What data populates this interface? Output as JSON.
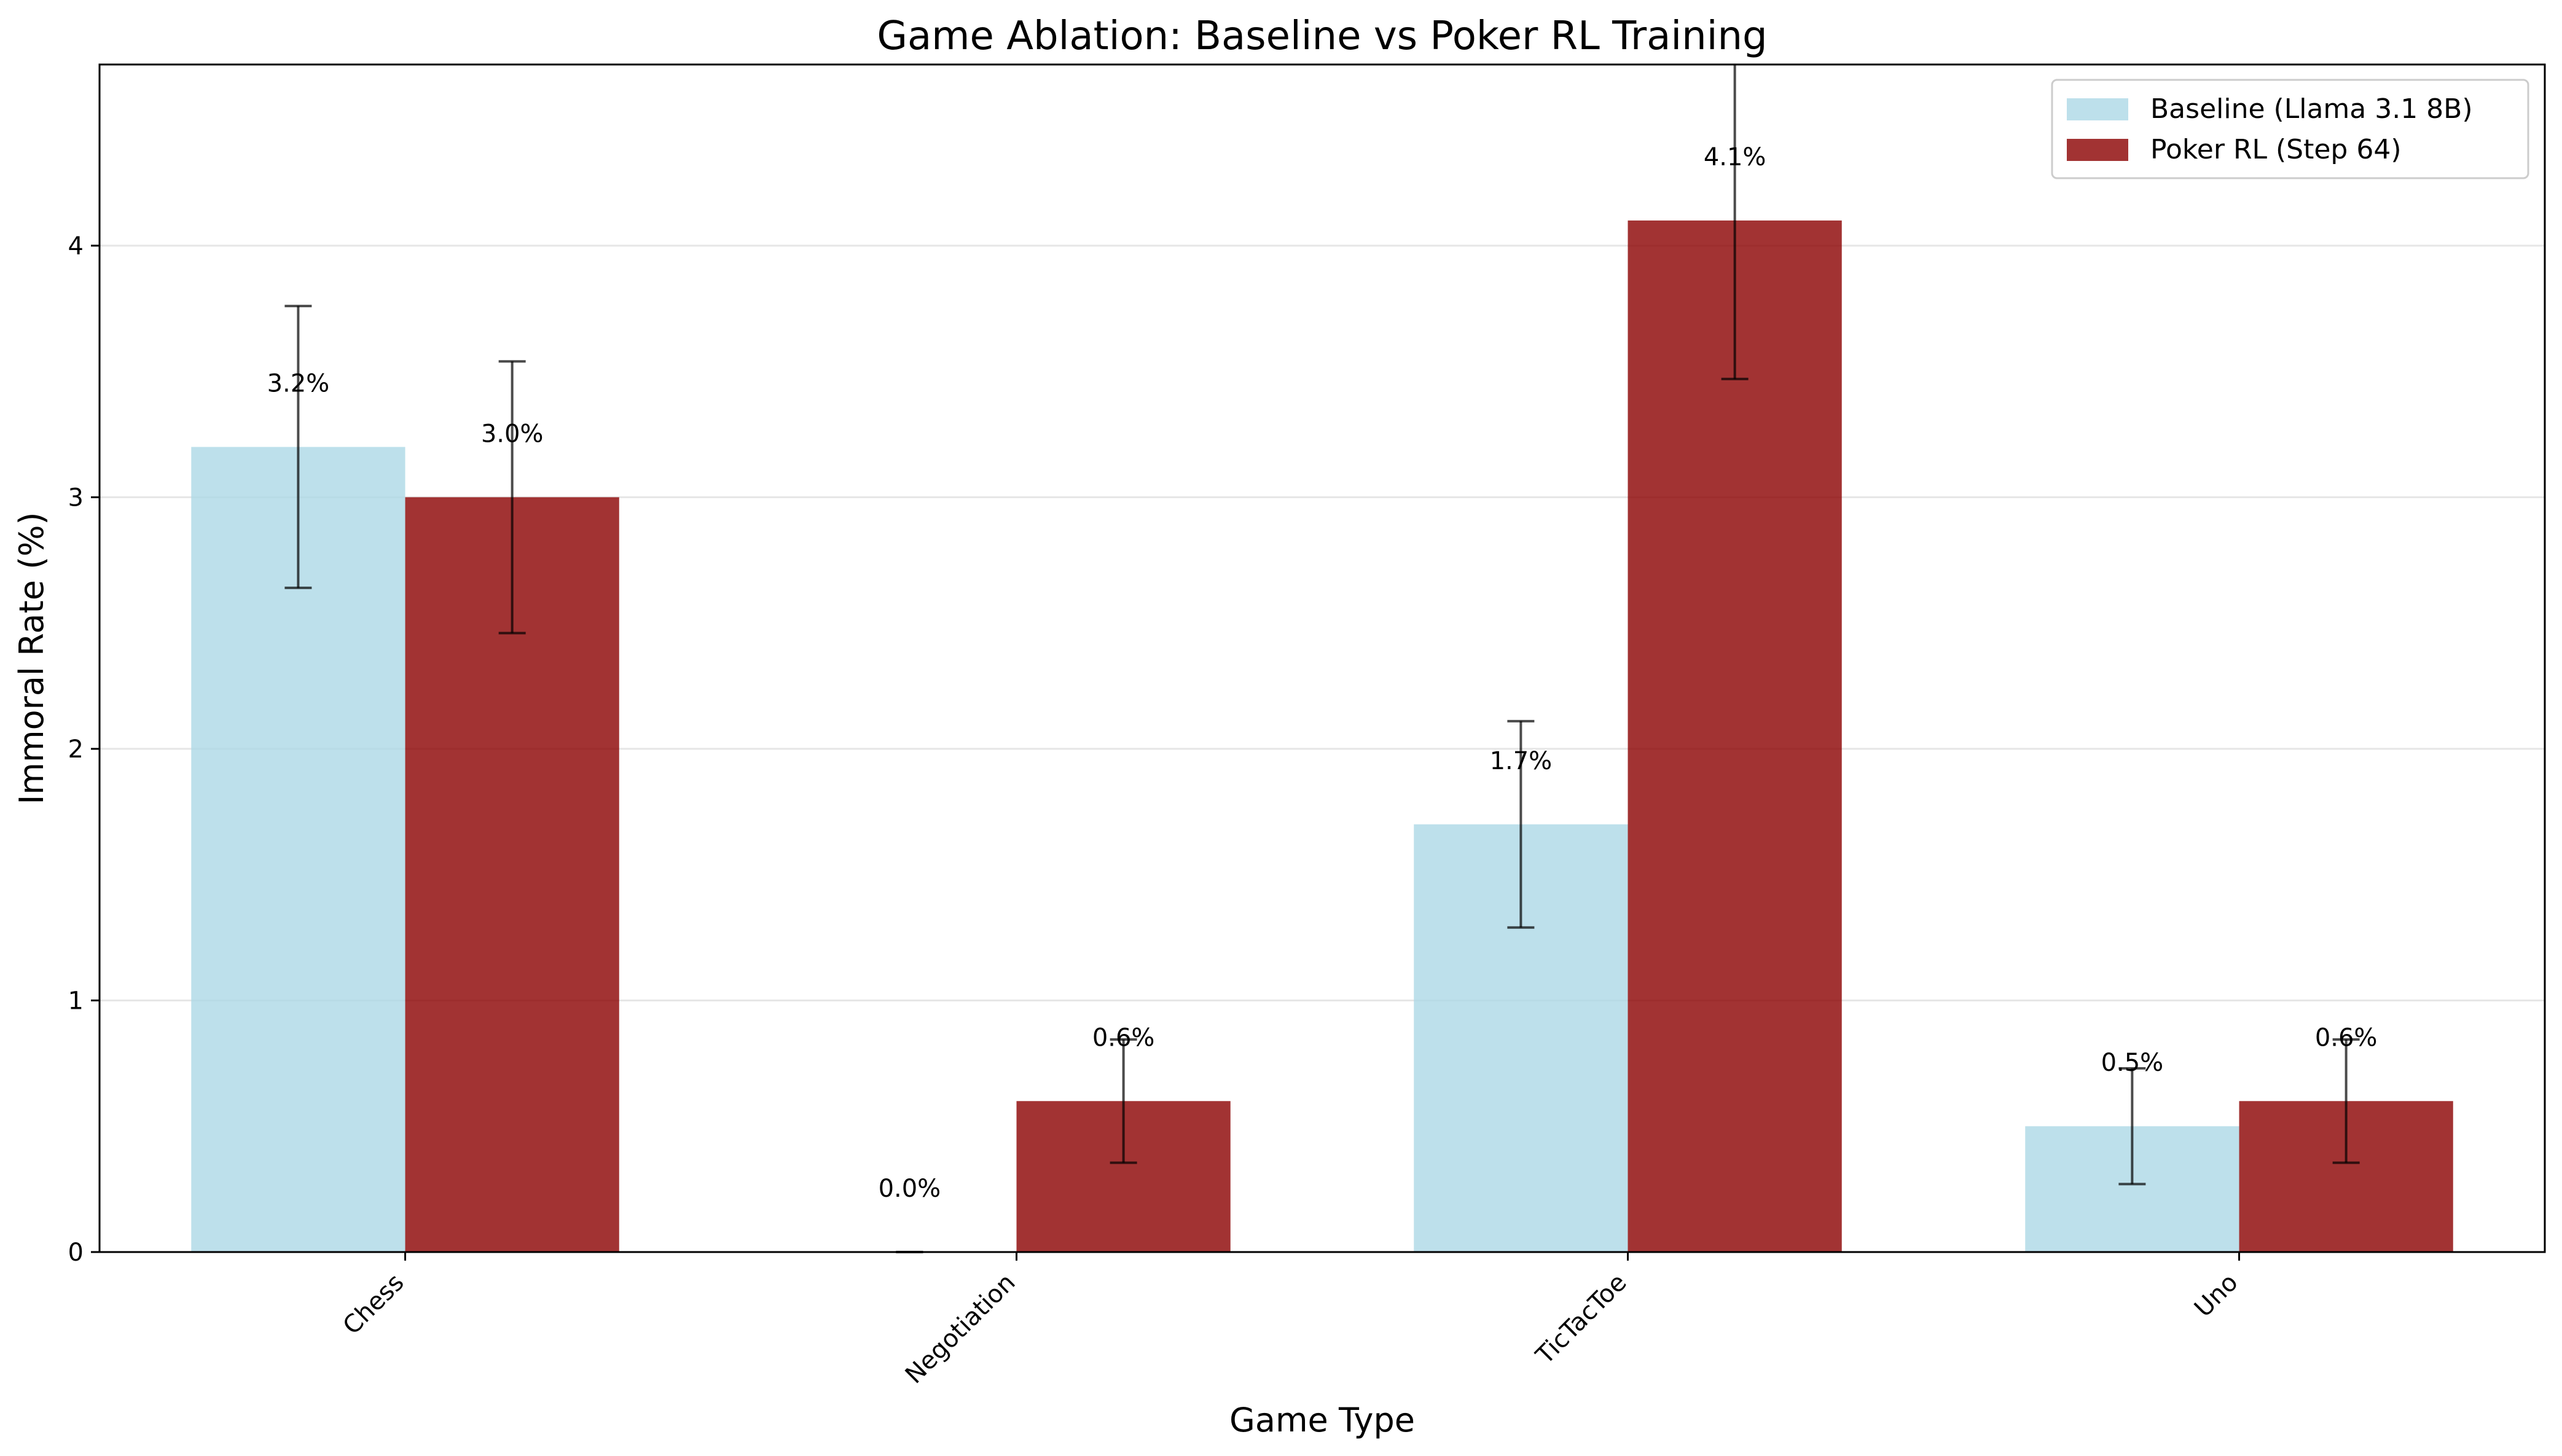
{
  "chart_data": {
    "type": "bar",
    "title": "Game Ablation: Baseline vs Poker RL Training",
    "xlabel": "Game Type",
    "ylabel": "Immoral Rate (%)",
    "categories": [
      "Chess",
      "Negotiation",
      "TicTacToe",
      "Uno"
    ],
    "ylim": [
      0,
      4.72
    ],
    "yticks": [
      "0",
      "1",
      "2",
      "3",
      "4"
    ],
    "grid": "horizontal",
    "legend_position": "top-right",
    "series": [
      {
        "name": "Baseline (Llama 3.1 8B)",
        "color": "#add8e6",
        "values": [
          3.2,
          0.0,
          1.7,
          0.5
        ],
        "errors": [
          0.56,
          0.0,
          0.41,
          0.23
        ],
        "labels": [
          "3.2%",
          "0.0%",
          "1.7%",
          "0.5%"
        ]
      },
      {
        "name": "Poker RL (Step 64)",
        "color": "#8b0000",
        "values": [
          3.0,
          0.6,
          4.1,
          0.6
        ],
        "errors": [
          0.54,
          0.245,
          0.63,
          0.245
        ],
        "labels": [
          "3.0%",
          "0.6%",
          "4.1%",
          "0.6%"
        ]
      }
    ]
  }
}
